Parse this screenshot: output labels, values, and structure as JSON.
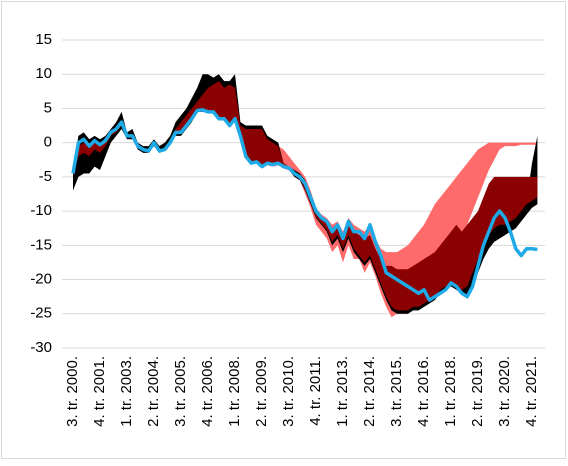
{
  "chart_data": {
    "type": "line",
    "categories": [
      "3. tr. 2000.",
      null,
      null,
      null,
      null,
      "4. tr. 2001.",
      null,
      null,
      null,
      null,
      "1. tr. 2003.",
      null,
      null,
      null,
      null,
      "2. tr. 2004.",
      null,
      null,
      null,
      null,
      "3. tr. 2005.",
      null,
      null,
      null,
      null,
      "4. tr. 2006.",
      null,
      null,
      null,
      null,
      "1. tr. 2008.",
      null,
      null,
      null,
      null,
      "2. tr. 2009.",
      null,
      null,
      null,
      null,
      "3. tr. 2010.",
      null,
      null,
      null,
      null,
      "4. tr. 2011.",
      null,
      null,
      null,
      null,
      "1. tr. 2013.",
      null,
      null,
      null,
      null,
      "2. tr. 2014.",
      null,
      null,
      null,
      null,
      "3. tr. 2015.",
      null,
      null,
      null,
      null,
      "4. tr. 2016.",
      null,
      null,
      null,
      null,
      "1. tr. 2018.",
      null,
      null,
      null,
      null,
      "2. tr. 2019.",
      null,
      null,
      null,
      null,
      "3. tr. 2020.",
      null,
      null,
      null,
      null,
      "4. tr. 2021.",
      null
    ],
    "bands": [
      {
        "color": "#ff6b6b",
        "low": [
          null,
          null,
          null,
          null,
          null,
          null,
          null,
          null,
          null,
          null,
          null,
          null,
          null,
          null,
          null,
          null,
          null,
          null,
          null,
          null,
          null,
          null,
          null,
          null,
          null,
          null,
          null,
          null,
          null,
          null,
          null,
          null,
          null,
          null,
          null,
          null,
          -3.3,
          -3.5,
          -3.3,
          -3.8,
          -4,
          -5,
          -5.5,
          -7.5,
          -9.5,
          -12,
          -13,
          -14,
          -16,
          -15,
          -17.5,
          -15,
          -17,
          -17,
          -19,
          -17.5,
          -19.5,
          -22,
          -24,
          -25.5,
          -25,
          -25,
          -25,
          -24.5,
          -24,
          -24,
          -23.5,
          -22,
          -21,
          -20,
          -18,
          -16,
          -14,
          -12,
          -10,
          -8,
          -6,
          -4,
          -2.5,
          -1,
          -0.5,
          -0.5,
          -0.5,
          -0.3,
          -0.3,
          -0.3,
          -0.3
        ],
        "high": [
          null,
          null,
          null,
          null,
          null,
          null,
          null,
          null,
          null,
          null,
          null,
          null,
          null,
          null,
          null,
          null,
          null,
          null,
          null,
          null,
          null,
          null,
          null,
          null,
          null,
          null,
          null,
          null,
          null,
          null,
          null,
          null,
          null,
          null,
          null,
          null,
          -1,
          -1.5,
          -0.5,
          -1,
          -2,
          -3,
          -4,
          -5,
          -7,
          -9.5,
          -10.5,
          -11,
          -12,
          -11.5,
          -13,
          -11,
          -12,
          -12.5,
          -13,
          -12,
          -14,
          -15.5,
          -16,
          -16,
          -16,
          -15.5,
          -15,
          -14,
          -13,
          -12,
          -10.5,
          -9,
          -8,
          -7,
          -6,
          -5,
          -4,
          -3,
          -2,
          -1,
          -0.5,
          0,
          0,
          0,
          0,
          0,
          0,
          0,
          0,
          0,
          0
        ]
      },
      {
        "color": "#000000",
        "low": [
          -7,
          -5,
          -4.5,
          -4.5,
          -3.5,
          -4,
          -2,
          0,
          1,
          2,
          0.5,
          0.5,
          -1,
          -1.5,
          -1.5,
          -0.5,
          -1.5,
          -1.2,
          -0.3,
          1,
          1,
          2,
          3,
          4.5,
          4.5,
          4.3,
          4.3,
          3.3,
          3.3,
          2.3,
          3.3,
          0.8,
          -2.2,
          -3.2,
          -3,
          -3.7,
          -3.2,
          -3.4,
          -3.2,
          -3.7,
          -4,
          -5,
          -5.5,
          -7,
          -9,
          -11,
          -12,
          -13,
          -15,
          -14,
          -16,
          -14,
          -16,
          -17,
          -18,
          -17,
          -19,
          -21,
          -23,
          -24.5,
          -25,
          -25,
          -25,
          -24.5,
          -24.5,
          -24,
          -23.5,
          -23,
          -22,
          -21.5,
          -21,
          -21.5,
          -22,
          -22.5,
          -21.5,
          -19,
          -17,
          -15.5,
          -14.5,
          -14,
          -13.5,
          -13,
          -12.5,
          -11.5,
          -10.5,
          -9.5,
          -9
        ],
        "high": [
          -4,
          1,
          1.5,
          0.5,
          1,
          0.5,
          1,
          2,
          3,
          4.5,
          1.5,
          2,
          0,
          -0.5,
          -0.5,
          0.5,
          -0.5,
          0,
          1,
          3,
          4,
          5,
          6.5,
          8,
          10,
          10,
          9.5,
          10,
          9,
          9,
          10,
          3,
          2.5,
          2.5,
          2.5,
          2.5,
          1,
          0.5,
          0,
          -3,
          -3.5,
          -4,
          -4.5,
          -5.5,
          -7.5,
          -10,
          -11,
          -12,
          -13,
          -13,
          -15,
          -13,
          -14,
          -15,
          -15.5,
          -15,
          -17,
          -19,
          -20,
          -20,
          -20.5,
          -21,
          -21.5,
          -21.5,
          -21.5,
          -21,
          -21,
          -20.5,
          -20,
          -19,
          -18.5,
          -18,
          -17,
          -16,
          -18,
          -16,
          -14,
          -12.5,
          -12,
          -11.5,
          -11.5,
          -11,
          -10.5,
          -9.5,
          -8.5,
          -3,
          1
        ]
      },
      {
        "color": "#8b0000",
        "low": [
          -5,
          -2,
          -1.5,
          -2,
          -1,
          -1.5,
          -0.5,
          1,
          1.5,
          2.5,
          0.8,
          0.8,
          -0.8,
          -1.2,
          -1.3,
          -0.2,
          -1.3,
          -1.1,
          -0.1,
          1.3,
          1.3,
          2.3,
          3.3,
          4.6,
          4.6,
          4.4,
          4.4,
          3.4,
          3.4,
          2.4,
          3.4,
          0.9,
          -2.1,
          -3.1,
          -2.9,
          -3.6,
          -3.1,
          -3.3,
          -3.1,
          -3.6,
          -3.9,
          -4.8,
          -5.3,
          -6.8,
          -8.8,
          -10.8,
          -11.8,
          -12.8,
          -14.5,
          -13.5,
          -15.5,
          -13.5,
          -15.5,
          -16.5,
          -17.5,
          -16.5,
          -18.5,
          -20.5,
          -22.5,
          -24,
          -24.5,
          -24.5,
          -24.5,
          -24,
          -24,
          -23.5,
          -23,
          -22.5,
          -21.5,
          -21,
          -20.5,
          -21,
          -21.5,
          -21,
          -19,
          -17,
          -15,
          -13.5,
          -12.5,
          -12,
          -12,
          -11.5,
          -11,
          -10,
          -9,
          -8.5,
          -8
        ],
        "high": [
          -4.5,
          -0.5,
          0,
          -0.8,
          0,
          -0.5,
          0.3,
          1.5,
          2,
          3,
          1,
          1,
          -0.5,
          -1,
          -1.2,
          0,
          -1.2,
          -1,
          0,
          2,
          3,
          4,
          5,
          6,
          7,
          8,
          8.5,
          9,
          8,
          8.5,
          8,
          2.5,
          2,
          2,
          2,
          2,
          0.5,
          0,
          -0.5,
          -3,
          -3.5,
          -4.5,
          -5,
          -6,
          -8,
          -10,
          -11,
          -11.5,
          -12.5,
          -12,
          -13.5,
          -11.5,
          -13,
          -13.5,
          -14,
          -13.5,
          -15.5,
          -17,
          -18,
          -18,
          -18.5,
          -18.5,
          -18.5,
          -18,
          -17.5,
          -17,
          -16.5,
          -16,
          -15,
          -14,
          -13,
          -12,
          -13,
          -12,
          -11,
          -10,
          -8,
          -6,
          -5,
          -5,
          -5,
          -5,
          -5,
          -5,
          -5,
          -5,
          -5
        ]
      }
    ],
    "series": [
      {
        "color": "#1eaae7",
        "values": [
          -4.5,
          0,
          0.5,
          -0.5,
          0.3,
          -0.3,
          0.3,
          1.5,
          2,
          3,
          1,
          1,
          -0.5,
          -1,
          -1.2,
          0,
          -1.2,
          -1,
          0,
          1.5,
          1.5,
          2.5,
          3.5,
          4.7,
          4.8,
          4.5,
          4.5,
          3.5,
          3.5,
          2.5,
          3.5,
          1,
          -2,
          -3,
          -2.8,
          -3.5,
          -3,
          -3.2,
          -3,
          -3.5,
          -3.7,
          -4.5,
          -5,
          -6,
          -8,
          -10,
          -11,
          -11.5,
          -13,
          -12,
          -14,
          -11.5,
          -13,
          -13,
          -14,
          -12,
          -14.5,
          -16.5,
          -19,
          -19.5,
          -20,
          -20.5,
          -21,
          -21.5,
          -22,
          -21.5,
          -23,
          -22.5,
          -22,
          -21.5,
          -20.5,
          -21,
          -22,
          -22.5,
          -21,
          -18,
          -15,
          -13,
          -11,
          -10,
          -11,
          -13,
          -15.5,
          -16.5,
          -15.5,
          -15.5,
          -15.6
        ]
      }
    ],
    "ylim": [
      -30,
      15
    ],
    "yticks": [
      -30,
      -25,
      -20,
      -15,
      -10,
      -5,
      0,
      5,
      10,
      15
    ],
    "grid": true
  }
}
